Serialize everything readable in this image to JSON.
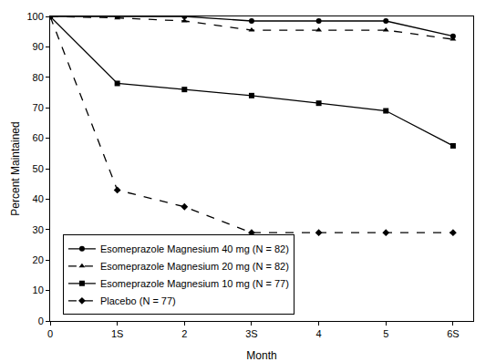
{
  "chart_data": {
    "type": "line",
    "x_label": "Month",
    "y_label": "Percent Maintained",
    "x": [
      0,
      1,
      2,
      3,
      4,
      5,
      6
    ],
    "xlim": [
      0,
      6.3
    ],
    "xticks": [
      0,
      {
        "value": 1,
        "label": "1S"
      },
      2,
      {
        "value": 3,
        "label": "3S"
      },
      4,
      5,
      {
        "value": 6,
        "label": "6S"
      }
    ],
    "ylim": [
      0,
      100
    ],
    "yticks": [
      0,
      10,
      20,
      30,
      40,
      50,
      60,
      70,
      80,
      90,
      100
    ],
    "grid": false,
    "legend": "lower left",
    "series": [
      {
        "name": "Esomeprazole Magnesium 40 mg (N = 82)",
        "color": "#000000",
        "marker": "circle",
        "line_style": "solid",
        "values": [
          100,
          100,
          100,
          98.5,
          98.5,
          98.5,
          93.5
        ]
      },
      {
        "name": "Esomeprazole Magnesium 20 mg (N = 82)",
        "color": "#000000",
        "marker": "triangle",
        "line_style": "dashed",
        "values": [
          100,
          99.5,
          98.5,
          95.5,
          95.5,
          95.5,
          92.5
        ]
      },
      {
        "name": "Esomeprazole Magnesium 10 mg (N = 77)",
        "color": "#000000",
        "marker": "square",
        "line_style": "solid",
        "values": [
          100,
          78,
          76,
          74,
          71.5,
          69,
          57.5
        ]
      },
      {
        "name": "Placebo (N = 77)",
        "color": "#000000",
        "marker": "diamond",
        "line_style": "dashed",
        "values": [
          100,
          43,
          37.5,
          29,
          29,
          29,
          29
        ]
      }
    ]
  }
}
